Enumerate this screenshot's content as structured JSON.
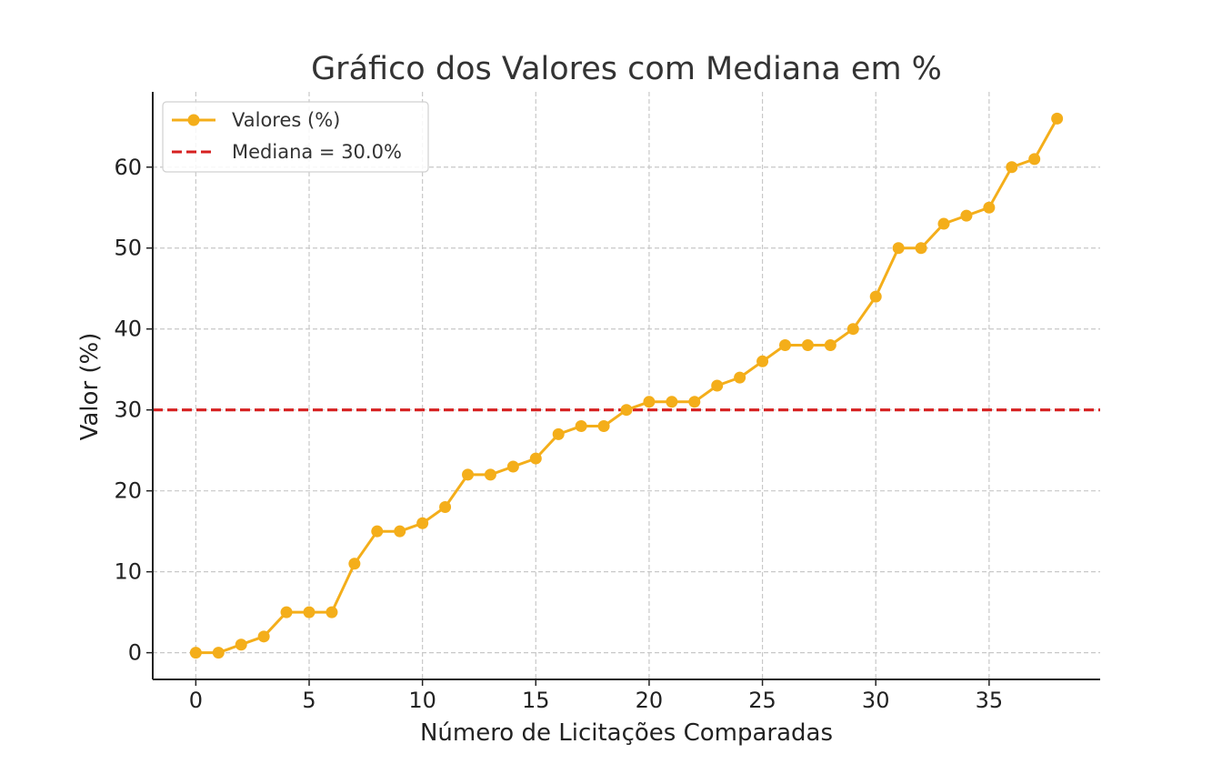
{
  "chart_data": {
    "type": "line",
    "title": "Gráfico dos Valores com Mediana em %",
    "xlabel": "Número de Licitações Comparadas",
    "ylabel": "Valor (%)",
    "xlim": [
      -1.9,
      39.9
    ],
    "ylim": [
      -3.3,
      69.3
    ],
    "xticks": [
      0,
      5,
      10,
      15,
      20,
      25,
      30,
      35
    ],
    "yticks": [
      0,
      10,
      20,
      30,
      40,
      50,
      60
    ],
    "grid": true,
    "legend_position": "top-left",
    "series": [
      {
        "name": "Valores (%)",
        "color": "#f4ae1a",
        "marker": "circle",
        "x": [
          0,
          1,
          2,
          3,
          4,
          5,
          6,
          7,
          8,
          9,
          10,
          11,
          12,
          13,
          14,
          15,
          16,
          17,
          18,
          19,
          20,
          21,
          22,
          23,
          24,
          25,
          26,
          27,
          28,
          29,
          30,
          31,
          32,
          33,
          34,
          35,
          36,
          37,
          38
        ],
        "values": [
          0,
          0,
          1,
          2,
          5,
          5,
          5,
          11,
          15,
          15,
          16,
          18,
          22,
          22,
          23,
          24,
          27,
          28,
          28,
          30,
          31,
          31,
          31,
          33,
          34,
          36,
          38,
          38,
          38,
          40,
          44,
          50,
          50,
          53,
          54,
          55,
          60,
          61,
          66
        ]
      }
    ],
    "reference_lines": [
      {
        "name": "Mediana = 30.0%",
        "y": 30,
        "color": "#d62020",
        "style": "dashed"
      }
    ]
  }
}
